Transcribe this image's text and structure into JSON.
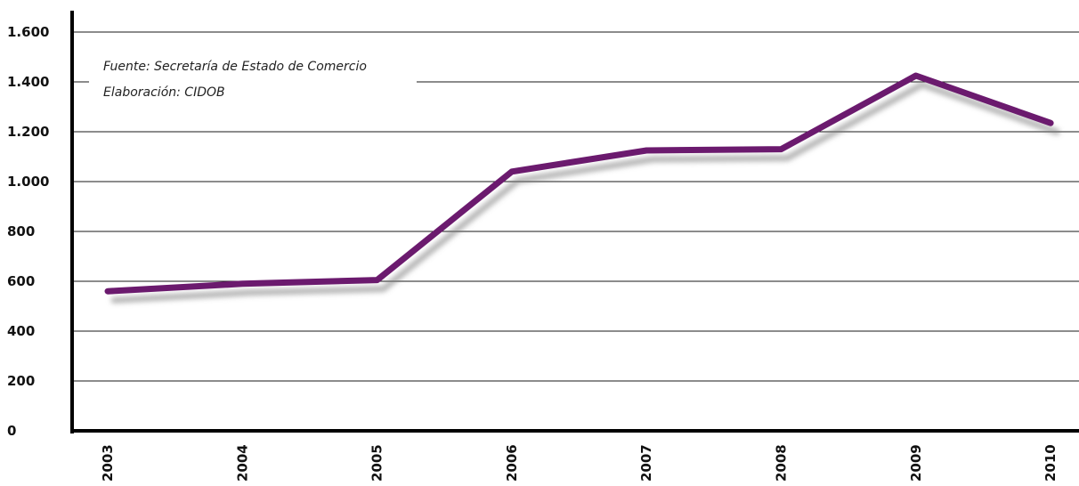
{
  "chart_data": {
    "type": "line",
    "title": "",
    "xlabel": "",
    "ylabel": "",
    "categories": [
      "2003",
      "2004",
      "2005",
      "2006",
      "2007",
      "2008",
      "2009",
      "2010"
    ],
    "series": [
      {
        "values": [
          560,
          590,
          605,
          1040,
          1125,
          1130,
          1425,
          1235
        ],
        "color": "#6b1a6e"
      }
    ],
    "ylim": [
      0,
      1600
    ],
    "yticks": [
      0,
      200,
      400,
      600,
      800,
      1000,
      1200,
      1400,
      1600
    ],
    "ytick_labels": [
      "0",
      "200",
      "400",
      "600",
      "800",
      "1.000",
      "1.200",
      "1.400",
      "1.600"
    ],
    "grid": true,
    "annotations": [
      "Fuente: Secretaría de Estado de Comercio",
      "Elaboración: CIDOB"
    ]
  }
}
